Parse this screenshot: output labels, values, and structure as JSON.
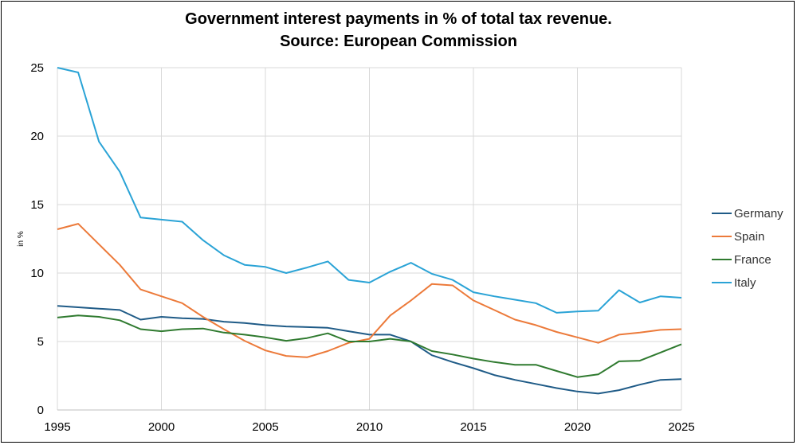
{
  "chart_data": {
    "type": "line",
    "title": "Government interest payments in % of total tax revenue.",
    "subtitle": "Source: European Commission",
    "xlabel": "",
    "ylabel": "in %",
    "xlim": [
      1995,
      2025
    ],
    "ylim": [
      0,
      25
    ],
    "x_ticks": [
      "1995",
      "2000",
      "2005",
      "2010",
      "2015",
      "2020",
      "2025"
    ],
    "y_ticks": [
      "0",
      "5",
      "10",
      "15",
      "20",
      "25"
    ],
    "grid": true,
    "legend_position": "right",
    "x": [
      1995,
      1996,
      1997,
      1998,
      1999,
      2000,
      2001,
      2002,
      2003,
      2004,
      2005,
      2006,
      2007,
      2008,
      2009,
      2010,
      2011,
      2012,
      2013,
      2014,
      2015,
      2016,
      2017,
      2018,
      2019,
      2020,
      2021,
      2022,
      2023,
      2024,
      2025
    ],
    "series": [
      {
        "name": "Germany",
        "color": "#1f5b87",
        "values": [
          7.6,
          7.5,
          7.4,
          7.3,
          6.6,
          6.8,
          6.7,
          6.65,
          6.45,
          6.35,
          6.2,
          6.1,
          6.05,
          6.0,
          5.75,
          5.5,
          5.5,
          5.0,
          4.0,
          3.5,
          3.05,
          2.55,
          2.2,
          1.9,
          1.6,
          1.35,
          1.2,
          1.45,
          1.85,
          2.2,
          2.25
        ]
      },
      {
        "name": "Spain",
        "color": "#ec7a3a",
        "values": [
          13.2,
          13.6,
          12.1,
          10.6,
          8.8,
          8.3,
          7.8,
          6.8,
          5.9,
          5.05,
          4.35,
          3.95,
          3.85,
          4.3,
          4.9,
          5.2,
          6.9,
          8.0,
          9.2,
          9.1,
          8.0,
          7.3,
          6.6,
          6.2,
          5.7,
          5.3,
          4.9,
          5.5,
          5.65,
          5.85,
          5.9
        ]
      },
      {
        "name": "France",
        "color": "#2f7a2f",
        "values": [
          6.75,
          6.9,
          6.8,
          6.55,
          5.9,
          5.75,
          5.9,
          5.95,
          5.65,
          5.5,
          5.3,
          5.05,
          5.25,
          5.6,
          5.0,
          5.0,
          5.2,
          5.0,
          4.3,
          4.05,
          3.75,
          3.5,
          3.3,
          3.3,
          2.85,
          2.4,
          2.6,
          3.55,
          3.6,
          4.2,
          4.8
        ]
      },
      {
        "name": "Italy",
        "color": "#2aa3d6",
        "values": [
          25.0,
          24.65,
          19.6,
          17.4,
          14.05,
          13.9,
          13.75,
          12.4,
          11.3,
          10.6,
          10.45,
          10.0,
          10.4,
          10.85,
          9.5,
          9.3,
          10.1,
          10.75,
          9.95,
          9.5,
          8.6,
          8.3,
          8.05,
          7.8,
          7.1,
          7.2,
          7.25,
          8.75,
          7.85,
          8.3,
          8.2
        ]
      }
    ]
  }
}
